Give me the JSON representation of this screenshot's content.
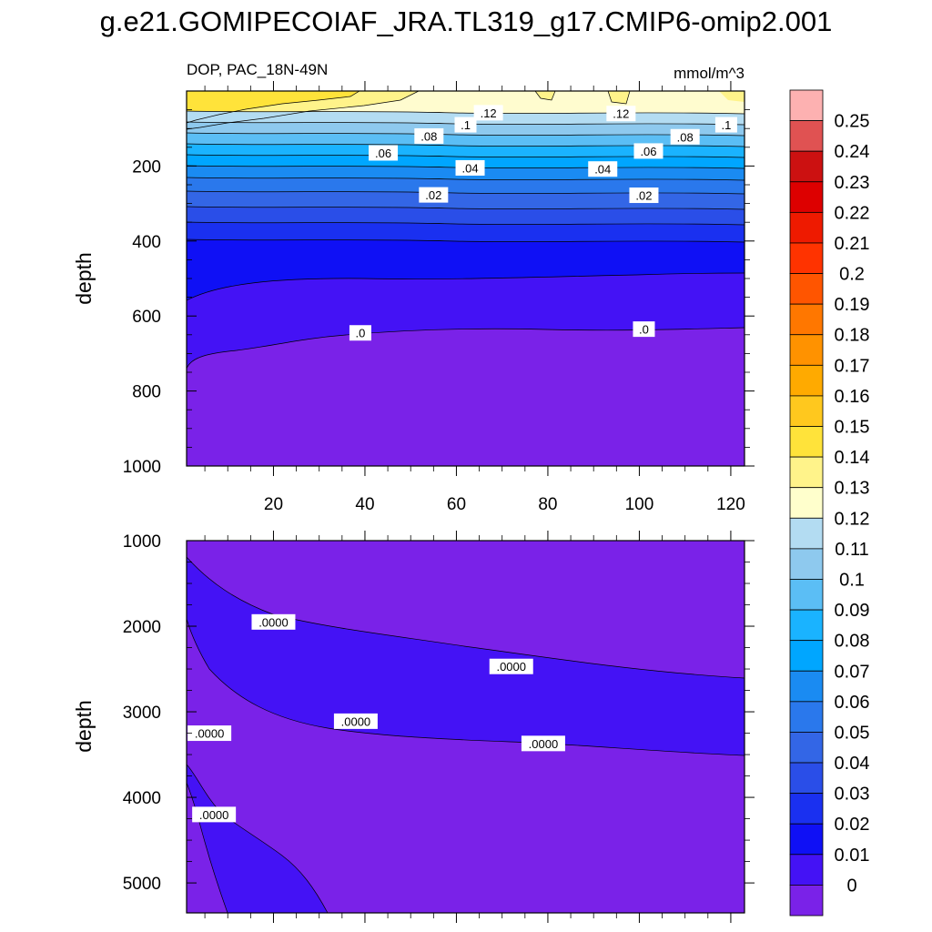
{
  "title": "g.e21.GOMIPECOIAF_JRA.TL319_g17.CMIP6-omip2.001",
  "chart_data": [
    {
      "type": "contour",
      "panel": "upper",
      "left_label": "DOP, PAC_18N-49N",
      "right_label": "mmol/m^3",
      "ylabel": "depth",
      "xlabel": "",
      "xlim": [
        1,
        123
      ],
      "ylim": [
        1000,
        0
      ],
      "y_reversed": true,
      "xticks": [
        20,
        40,
        60,
        80,
        100,
        120
      ],
      "xtick_labels": [
        "20",
        "40",
        "60",
        "80",
        "100",
        "120"
      ],
      "yticks": [
        200,
        400,
        600,
        800,
        1000
      ],
      "ytick_labels": [
        "200",
        "400",
        "600",
        "800",
        "1000"
      ],
      "contour_labels": [
        {
          "text": ".12",
          "x": 67,
          "y": 58
        },
        {
          "text": ".12",
          "x": 96,
          "y": 60
        },
        {
          "text": ".1",
          "x": 62,
          "y": 90
        },
        {
          "text": ".1",
          "x": 119,
          "y": 90
        },
        {
          "text": ".08",
          "x": 54,
          "y": 120
        },
        {
          "text": ".08",
          "x": 110,
          "y": 122
        },
        {
          "text": ".06",
          "x": 44,
          "y": 165
        },
        {
          "text": ".06",
          "x": 102,
          "y": 160
        },
        {
          "text": ".04",
          "x": 63,
          "y": 205
        },
        {
          "text": ".04",
          "x": 92,
          "y": 208
        },
        {
          "text": ".02",
          "x": 55,
          "y": 277
        },
        {
          "text": ".02",
          "x": 101,
          "y": 278
        },
        {
          "text": ".0",
          "x": 39,
          "y": 645
        },
        {
          "text": ".0",
          "x": 101,
          "y": 635
        }
      ]
    },
    {
      "type": "contour",
      "panel": "lower",
      "ylabel": "depth",
      "xlabel": "",
      "xlim": [
        1,
        123
      ],
      "ylim": [
        5350,
        1000
      ],
      "y_reversed": true,
      "yticks": [
        1000,
        2000,
        3000,
        4000,
        5000
      ],
      "ytick_labels": [
        "1000",
        "2000",
        "3000",
        "4000",
        "5000"
      ],
      "contour_labels": [
        {
          "text": ".0000",
          "x": 20,
          "y": 1950
        },
        {
          "text": ".0000",
          "x": 72,
          "y": 2470
        },
        {
          "text": ".0000",
          "x": 38,
          "y": 3110
        },
        {
          "text": ".0000",
          "x": 79,
          "y": 3370
        },
        {
          "text": ".0000",
          "x": 6,
          "y": 3250
        },
        {
          "text": ".0000",
          "x": 7,
          "y": 4200
        }
      ]
    }
  ],
  "colorbar": {
    "labels": [
      "0.25",
      "0.24",
      "0.23",
      "0.22",
      "0.21",
      "0.2",
      "0.19",
      "0.18",
      "0.17",
      "0.16",
      "0.15",
      "0.14",
      "0.13",
      "0.12",
      "0.11",
      "0.1",
      "0.09",
      "0.08",
      "0.07",
      "0.06",
      "0.05",
      "0.04",
      "0.03",
      "0.02",
      "0.01",
      "0"
    ],
    "colors": [
      "#fdb1b1",
      "#e05252",
      "#cc1111",
      "#dd0000",
      "#ee1a00",
      "#ff3300",
      "#ff5500",
      "#ff7700",
      "#ff9200",
      "#ffaa00",
      "#ffc81e",
      "#ffe33a",
      "#fff38a",
      "#ffffcc",
      "#b3dcf2",
      "#8ec9ee",
      "#5bbef5",
      "#1ab3ff",
      "#00a6ff",
      "#1a8bf2",
      "#2a78ec",
      "#3366e6",
      "#2a4ee8",
      "#1a30f0",
      "#0f10f5",
      "#4412f5",
      "#7a22e8"
    ]
  }
}
